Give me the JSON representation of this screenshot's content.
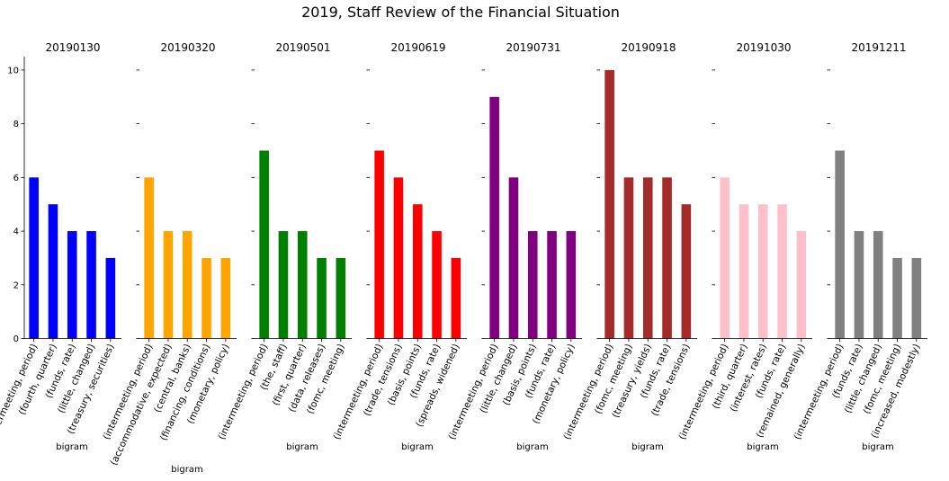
{
  "title": "2019, Staff Review of the Financial Situation",
  "y_ticks": [
    "0",
    "2",
    "4",
    "6",
    "8",
    "10"
  ],
  "chart_data": [
    {
      "type": "bar",
      "title": "20190130",
      "xlabel": "bigram",
      "ylim": [
        0,
        10.5
      ],
      "color": "#0000ff",
      "categories": [
        "(intermeeting, period)",
        "(fourth, quarter)",
        "(funds, rate)",
        "(little, changed)",
        "(treasury, securities)"
      ],
      "values": [
        6,
        5,
        4,
        4,
        3
      ]
    },
    {
      "type": "bar",
      "title": "20190320",
      "xlabel": "bigram",
      "ylim": [
        0,
        10.5
      ],
      "color": "#ffa500",
      "categories": [
        "(intermeeting, period)",
        "(accommodative, expected)",
        "(central, banks)",
        "(financing, conditions)",
        "(monetary, policy)"
      ],
      "values": [
        6,
        4,
        4,
        3,
        3
      ]
    },
    {
      "type": "bar",
      "title": "20190501",
      "xlabel": "bigram",
      "ylim": [
        0,
        10.5
      ],
      "color": "#008000",
      "categories": [
        "(intermeeting, period)",
        "(the, staff)",
        "(first, quarter)",
        "(data, releases)",
        "(fomc, meeting)"
      ],
      "values": [
        7,
        4,
        4,
        3,
        3
      ]
    },
    {
      "type": "bar",
      "title": "20190619",
      "xlabel": "bigram",
      "ylim": [
        0,
        10.5
      ],
      "color": "#ff0000",
      "categories": [
        "(intermeeting, period)",
        "(trade, tensions)",
        "(basis, points)",
        "(funds, rate)",
        "(spreads, widened)"
      ],
      "values": [
        7,
        6,
        5,
        4,
        3
      ]
    },
    {
      "type": "bar",
      "title": "20190731",
      "xlabel": "bigram",
      "ylim": [
        0,
        10.5
      ],
      "color": "#800080",
      "categories": [
        "(intermeeting, period)",
        "(little, changed)",
        "(basis, points)",
        "(funds, rate)",
        "(monetary, policy)"
      ],
      "values": [
        9,
        6,
        4,
        4,
        4
      ]
    },
    {
      "type": "bar",
      "title": "20190918",
      "xlabel": "bigram",
      "ylim": [
        0,
        10.5
      ],
      "color": "#a52a2a",
      "categories": [
        "(intermeeting, period)",
        "(fomc, meeting)",
        "(treasury, yields)",
        "(funds, rate)",
        "(trade, tensions)"
      ],
      "values": [
        10,
        6,
        6,
        6,
        5
      ]
    },
    {
      "type": "bar",
      "title": "20191030",
      "xlabel": "bigram",
      "ylim": [
        0,
        10.5
      ],
      "color": "#ffc0cb",
      "categories": [
        "(intermeeting, period)",
        "(third, quarter)",
        "(interest, rates)",
        "(funds, rate)",
        "(remained, generally)"
      ],
      "values": [
        6,
        5,
        5,
        5,
        4
      ]
    },
    {
      "type": "bar",
      "title": "20191211",
      "xlabel": "bigram",
      "ylim": [
        0,
        10.5
      ],
      "color": "#808080",
      "categories": [
        "(intermeeting, period)",
        "(funds, rate)",
        "(little, changed)",
        "(fomc, meeting)",
        "(increased, modestly)"
      ],
      "values": [
        7,
        4,
        4,
        3,
        3
      ]
    }
  ]
}
